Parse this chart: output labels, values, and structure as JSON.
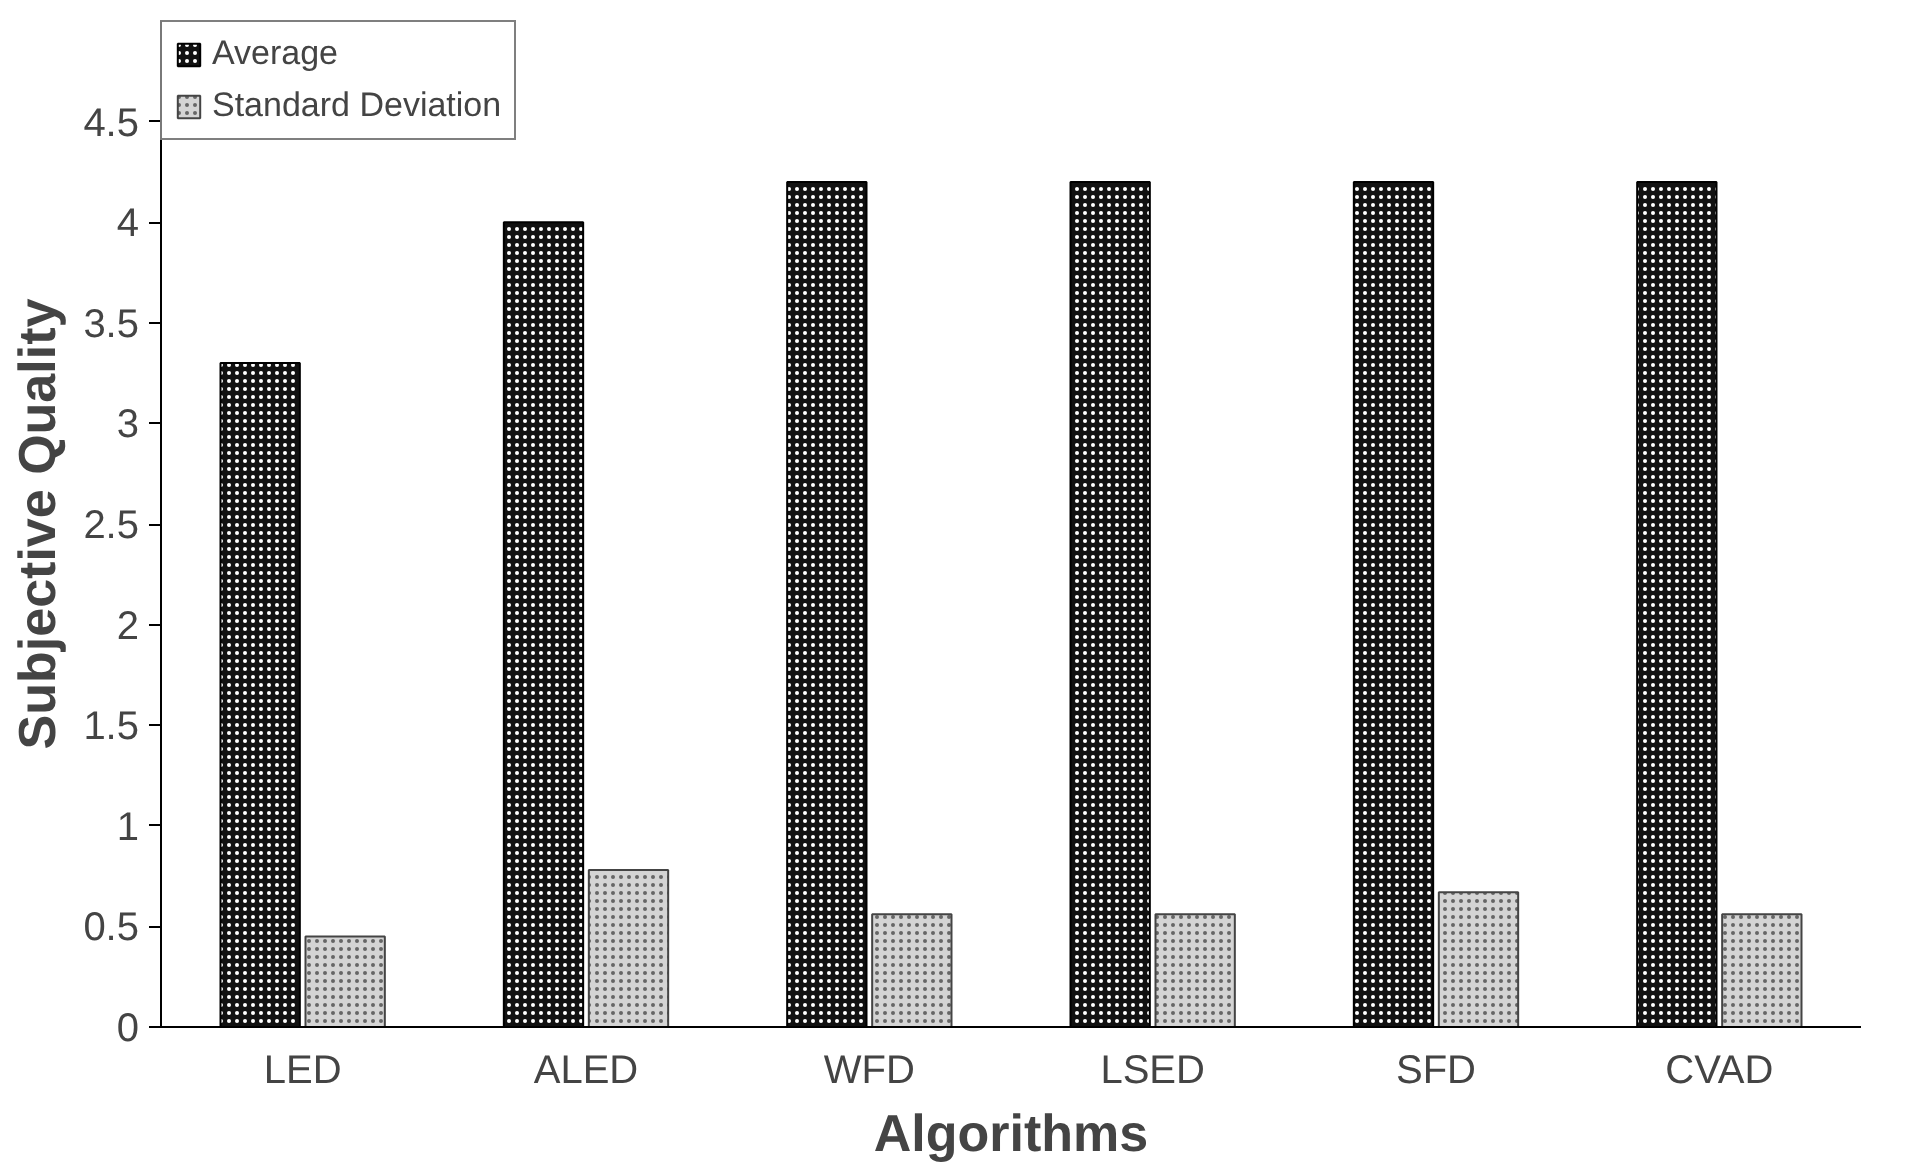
{
  "chart_data": {
    "type": "bar",
    "xlabel": "Algorithms",
    "ylabel": "Subjective Quality",
    "categories": [
      "LED",
      "ALED",
      "WFD",
      "LSED",
      "SFD",
      "CVAD"
    ],
    "series": [
      {
        "name": "Average",
        "color": "#111111",
        "values": [
          3.3,
          4.0,
          4.2,
          4.2,
          4.2,
          4.2
        ]
      },
      {
        "name": "Standard Deviation",
        "color": "#d4d4d4",
        "values": [
          0.45,
          0.78,
          0.56,
          0.56,
          0.67,
          0.56
        ]
      }
    ],
    "ylim": [
      0,
      5
    ],
    "yticks": [
      0,
      0.5,
      1,
      1.5,
      2,
      2.5,
      3,
      3.5,
      4,
      4.5
    ],
    "grid": false,
    "legend": "top left"
  }
}
